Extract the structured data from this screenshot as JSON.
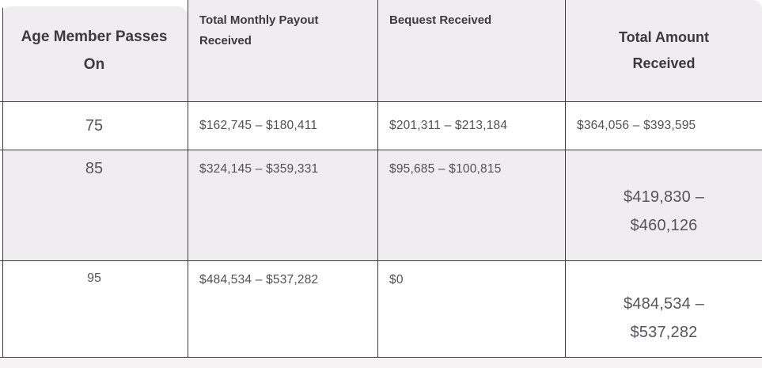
{
  "table": {
    "headers": {
      "age": "Age Member Passes On",
      "monthly_payout": "Total Monthly Payout Received",
      "bequest": "Bequest Received",
      "total": "Total Amount Received"
    },
    "rows": [
      {
        "age": "75",
        "monthly_payout": "$162,745 – $180,411",
        "bequest": "$201,311 – $213,184",
        "total": "$364,056 – $393,595"
      },
      {
        "age": "85",
        "monthly_payout": "$324,145 – $359,331",
        "bequest": "$95,685 – $100,815",
        "total": "$419,830 – $460,126"
      },
      {
        "age": "95",
        "monthly_payout": "$484,534 – $537,282",
        "bequest": "$0",
        "total": "$484,534 – $537,282"
      }
    ]
  },
  "colors": {
    "header_background": "#efedef",
    "row_alt_background": "#efedef",
    "bottom_strip": "#f5f2f3",
    "grid_line": "#3f3f43",
    "header_text": "#3b3b3f",
    "body_text": "#505056"
  }
}
